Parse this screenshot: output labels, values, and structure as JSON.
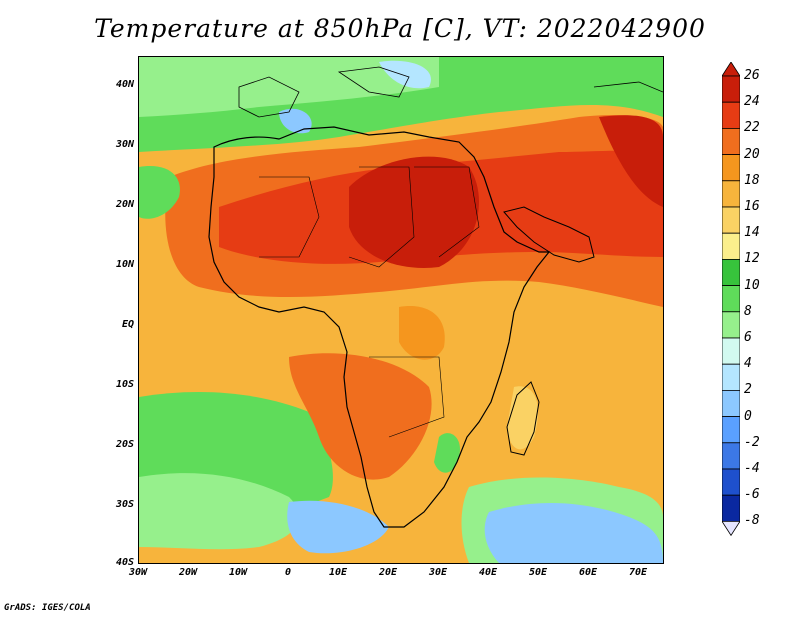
{
  "title": "Temperature at 850hPa [C], VT: 2022042900",
  "credit": "GrADS: IGES/COLA",
  "lat_labels": [
    "40N",
    "30N",
    "20N",
    "10N",
    "EQ",
    "10S",
    "20S",
    "30S",
    "40S"
  ],
  "lon_labels": [
    "30W",
    "20W",
    "10W",
    "0",
    "10E",
    "20E",
    "30E",
    "40E",
    "50E",
    "60E",
    "70E"
  ],
  "colorbar": {
    "labels": [
      "26",
      "24",
      "22",
      "20",
      "18",
      "16",
      "14",
      "12",
      "10",
      "8",
      "6",
      "4",
      "2",
      "0",
      "-2",
      "-4",
      "-6",
      "-8"
    ],
    "colors": [
      "#c81e0a",
      "#e63c14",
      "#f06e1e",
      "#f5961e",
      "#f7b43c",
      "#fad264",
      "#fbef8c",
      "#37c33c",
      "#5fdc5a",
      "#96f08c",
      "#d2faf0",
      "#b4e6ff",
      "#8cc8ff",
      "#5aa0ff",
      "#3c78e6",
      "#1e50cd",
      "#0a28a0",
      "#0a0a5a"
    ]
  },
  "map_colors": {
    "ocean_base": "#f7b43c",
    "cold_sea": "#5fdc5a",
    "cool_sea": "#96f08c",
    "cyan": "#d2faf0",
    "blue": "#8cc8ff",
    "hot1": "#f06e1e",
    "hot2": "#e63c14",
    "hot3": "#c81e0a",
    "warm": "#f5961e",
    "mild": "#fad264"
  }
}
